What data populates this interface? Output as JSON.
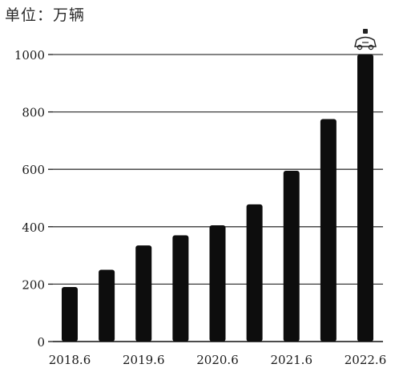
{
  "chart_data": {
    "type": "bar",
    "unit_label": "单位：万辆",
    "categories": [
      "",
      "",
      "",
      "",
      "",
      "",
      "",
      "",
      ""
    ],
    "x_tick_labels": [
      "2018.6",
      "2019.6",
      "2020.6",
      "2021.6",
      "2022.6"
    ],
    "values": [
      190,
      250,
      335,
      370,
      405,
      478,
      595,
      775,
      1001
    ],
    "ylim": [
      0,
      1000
    ],
    "yticks": [
      0,
      200,
      400,
      600,
      800,
      1000
    ],
    "grid": "horizontal",
    "title": "",
    "xlabel": "",
    "ylabel": "",
    "bar_color": "#0d0d0d",
    "icon": "car-with-battery-icon"
  }
}
